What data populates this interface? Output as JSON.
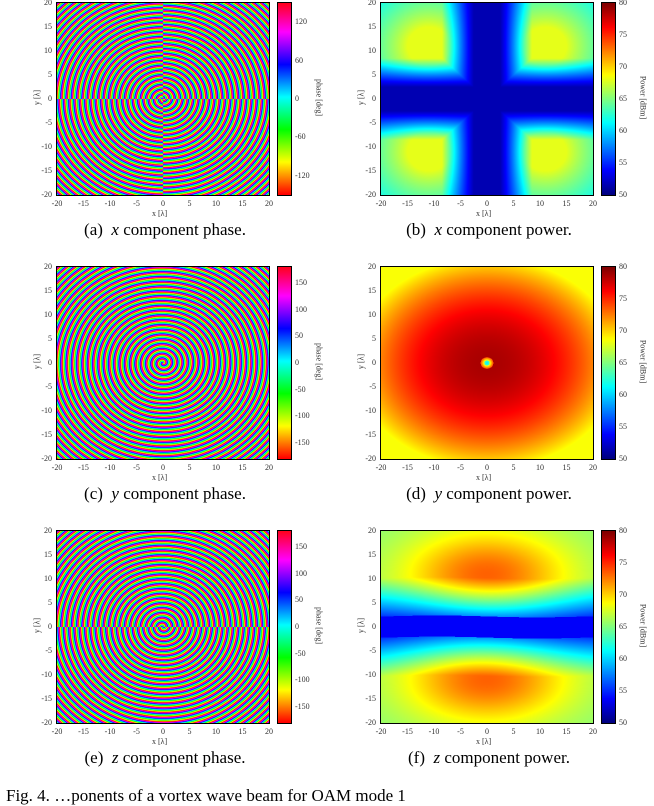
{
  "chart_data": [
    {
      "id": "a",
      "type": "heatmap",
      "kind": "phase",
      "component": "x",
      "xlabel": "x [λ]",
      "ylabel": "y [λ]",
      "colorbar_label": "phase [deg]",
      "xlim": [
        -20,
        20
      ],
      "ylim": [
        -20,
        20
      ],
      "x_ticks": [
        "-20",
        "-15",
        "-10",
        "-5",
        "0",
        "5",
        "10",
        "15",
        "20"
      ],
      "y_ticks": [
        "20",
        "15",
        "10",
        "5",
        "0",
        "-5",
        "-10",
        "-15",
        "-20"
      ],
      "colorbar_range": [
        -150,
        150
      ],
      "colorbar_ticks": [
        "120",
        "60",
        "0",
        "-60",
        "-120"
      ],
      "colorbar_tick_values": [
        120,
        60,
        0,
        -60,
        -120
      ],
      "caption_tag": "(a)",
      "caption_var": "x",
      "caption_text": "component phase."
    },
    {
      "id": "b",
      "type": "heatmap",
      "kind": "power_x",
      "component": "x",
      "xlabel": "x [λ]",
      "ylabel": "y [λ]",
      "colorbar_label": "Power [dBm]",
      "xlim": [
        -20,
        20
      ],
      "ylim": [
        -20,
        20
      ],
      "x_ticks": [
        "-20",
        "-15",
        "-10",
        "-5",
        "0",
        "5",
        "10",
        "15",
        "20"
      ],
      "y_ticks": [
        "20",
        "15",
        "10",
        "5",
        "0",
        "-5",
        "-10",
        "-15",
        "-20"
      ],
      "colorbar_range": [
        50,
        80
      ],
      "colorbar_ticks": [
        "80",
        "75",
        "70",
        "65",
        "60",
        "55",
        "50"
      ],
      "colorbar_tick_values": [
        80,
        75,
        70,
        65,
        60,
        55,
        50
      ],
      "caption_tag": "(b)",
      "caption_var": "x",
      "caption_text": "component power."
    },
    {
      "id": "c",
      "type": "heatmap",
      "kind": "phase",
      "component": "y",
      "xlabel": "x [λ]",
      "ylabel": "y [λ]",
      "colorbar_label": "phase [deg]",
      "xlim": [
        -20,
        20
      ],
      "ylim": [
        -20,
        20
      ],
      "x_ticks": [
        "-20",
        "-15",
        "-10",
        "-5",
        "0",
        "5",
        "10",
        "15",
        "20"
      ],
      "y_ticks": [
        "20",
        "15",
        "10",
        "5",
        "0",
        "-5",
        "-10",
        "-15",
        "-20"
      ],
      "colorbar_range": [
        -180,
        180
      ],
      "colorbar_ticks": [
        "150",
        "100",
        "50",
        "0",
        "-50",
        "-100",
        "-150"
      ],
      "colorbar_tick_values": [
        150,
        100,
        50,
        0,
        -50,
        -100,
        -150
      ],
      "caption_tag": "(c)",
      "caption_var": "y",
      "caption_text": "component phase."
    },
    {
      "id": "d",
      "type": "heatmap",
      "kind": "power_y",
      "component": "y",
      "xlabel": "x [λ]",
      "ylabel": "y [λ]",
      "colorbar_label": "Power [dBm]",
      "xlim": [
        -20,
        20
      ],
      "ylim": [
        -20,
        20
      ],
      "x_ticks": [
        "-20",
        "-15",
        "-10",
        "-5",
        "0",
        "5",
        "10",
        "15",
        "20"
      ],
      "y_ticks": [
        "20",
        "15",
        "10",
        "5",
        "0",
        "-5",
        "-10",
        "-15",
        "-20"
      ],
      "colorbar_range": [
        50,
        80
      ],
      "colorbar_ticks": [
        "80",
        "75",
        "70",
        "65",
        "60",
        "55",
        "50"
      ],
      "colorbar_tick_values": [
        80,
        75,
        70,
        65,
        60,
        55,
        50
      ],
      "caption_tag": "(d)",
      "caption_var": "y",
      "caption_text": "component power."
    },
    {
      "id": "e",
      "type": "heatmap",
      "kind": "phase",
      "component": "z",
      "xlabel": "x [λ]",
      "ylabel": "y [λ]",
      "colorbar_label": "phase [deg]",
      "xlim": [
        -20,
        20
      ],
      "ylim": [
        -20,
        20
      ],
      "x_ticks": [
        "-20",
        "-15",
        "-10",
        "-5",
        "0",
        "5",
        "10",
        "15",
        "20"
      ],
      "y_ticks": [
        "20",
        "15",
        "10",
        "5",
        "0",
        "-5",
        "-10",
        "-15",
        "-20"
      ],
      "colorbar_range": [
        -180,
        180
      ],
      "colorbar_ticks": [
        "150",
        "100",
        "50",
        "0",
        "-50",
        "-100",
        "-150"
      ],
      "colorbar_tick_values": [
        150,
        100,
        50,
        0,
        -50,
        -100,
        -150
      ],
      "caption_tag": "(e)",
      "caption_var": "z",
      "caption_text": "component phase."
    },
    {
      "id": "f",
      "type": "heatmap",
      "kind": "power_z",
      "component": "z",
      "xlabel": "x [λ]",
      "ylabel": "y [λ]",
      "colorbar_label": "Power [dBm]",
      "xlim": [
        -20,
        20
      ],
      "ylim": [
        -20,
        20
      ],
      "x_ticks": [
        "-20",
        "-15",
        "-10",
        "-5",
        "0",
        "5",
        "10",
        "15",
        "20"
      ],
      "y_ticks": [
        "20",
        "15",
        "10",
        "5",
        "0",
        "-5",
        "-10",
        "-15",
        "-20"
      ],
      "colorbar_range": [
        50,
        80
      ],
      "colorbar_ticks": [
        "80",
        "75",
        "70",
        "65",
        "60",
        "55",
        "50"
      ],
      "colorbar_tick_values": [
        80,
        75,
        70,
        65,
        60,
        55,
        50
      ],
      "caption_tag": "(f)",
      "caption_var": "z",
      "caption_text": "component power."
    }
  ],
  "figure_caption": {
    "prefix": "Fig. 4.",
    "text": "…ponents of a vortex wave beam for OAM mode 1"
  }
}
